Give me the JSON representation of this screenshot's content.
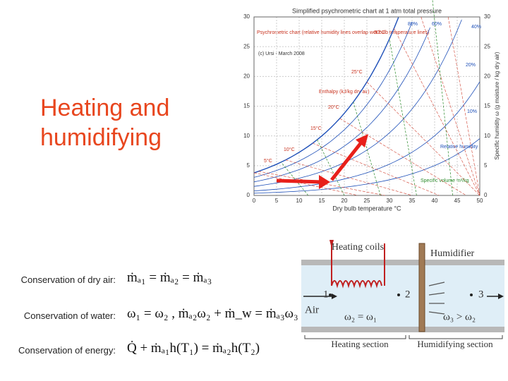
{
  "title": "Heating and humidifying",
  "psychro_chart": {
    "title": "Simplified psychrometric chart at 1 atm total pressure",
    "x_label": "Dry bulb temperature °C",
    "y_label": "Specific humidity ω (g moisture / kg dry air)",
    "x_ticks": [
      0,
      5,
      10,
      15,
      20,
      25,
      30,
      35,
      40,
      45,
      50
    ],
    "y_ticks": [
      0,
      5,
      10,
      15,
      20,
      25,
      30
    ],
    "note": "Psychrometric chart (relative humidity lines overlap wet bulb temperature lines)",
    "credit": "(c) Ursi - March 2008",
    "enthalpy_note": "Enthalpy (kJ/kg dry air)",
    "rh_note": "Relative humidity",
    "volume_note": "Specific volume m³/kg",
    "rh_labels": [
      "80%",
      "60%",
      "40%",
      "20%",
      "10%"
    ],
    "temp_labels": [
      "30°C",
      "25°C",
      "20°C",
      "15°C",
      "10°C",
      "5°C"
    ]
  },
  "equations": [
    {
      "label": "Conservation of dry air:",
      "formula": "ṁₐ₁ = ṁₐ₂ = ṁₐ₃"
    },
    {
      "label": "Conservation of water:",
      "formula": "ω₁ = ω₂ ,   ṁₐ₂ω₂ + ṁ_w = ṁₐ₃ω₃"
    },
    {
      "label": "Conservation of energy:",
      "formula": "Q̇ + ṁₐ₁h(T₁) = ṁₐ₂h(T₂)"
    }
  ],
  "diagram": {
    "heating_coils": "Heating coils",
    "humidifier": "Humidifier",
    "air": "Air",
    "state_1": "1",
    "state_2": "2",
    "state_3": "3",
    "omega_2": "ω₂ = ω₁",
    "omega_3": "ω₃ > ω₂",
    "heating_section": "Heating section",
    "humidifying_section": "Humidifying section"
  }
}
